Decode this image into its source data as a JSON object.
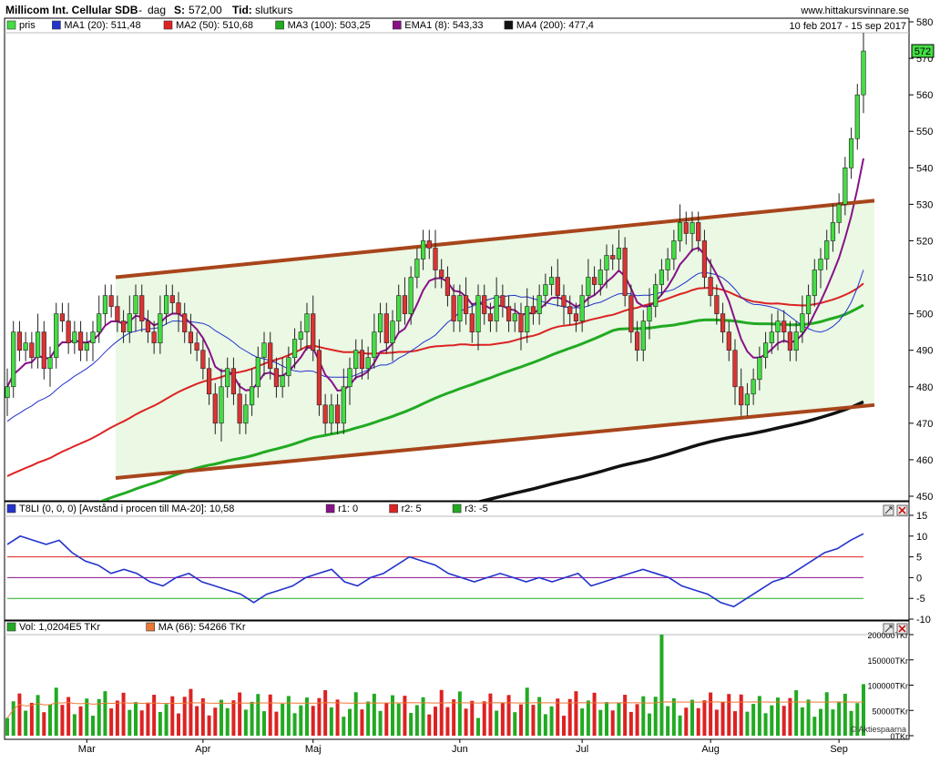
{
  "header": {
    "title": "Millicom Int. Cellular SDB",
    "separator": " - ",
    "period": "dag",
    "price_label": "S:",
    "price_value": "572,00",
    "time_label": "Tid:",
    "time_value": "slutkurs",
    "website": "www.hittakursvinnare.se",
    "date_range": "10 feb 2017 - 15 sep 2017"
  },
  "price_panel": {
    "legend": [
      {
        "label": "pris",
        "color": "#44dd44"
      },
      {
        "label": "MA1 (20): 511,48",
        "color": "#2233cc"
      },
      {
        "label": "MA2 (50): 510,68",
        "color": "#dd2222"
      },
      {
        "label": "MA3 (100): 503,25",
        "color": "#22aa22"
      },
      {
        "label": "EMA1 (8): 543,33",
        "color": "#881188"
      },
      {
        "label": "MA4 (200): 477,4",
        "color": "#111111"
      }
    ],
    "last_price_tag": "572",
    "y_ticks": [
      "580",
      "570",
      "560",
      "550",
      "540",
      "530",
      "520",
      "510",
      "500",
      "490",
      "480",
      "470",
      "460",
      "450"
    ]
  },
  "indicator_panel": {
    "legend": [
      {
        "label": "T8LI (0, 0, 0) [Avstånd i procen till MA-20]: 10,58",
        "color": "#2233cc"
      },
      {
        "label": "r1: 0",
        "color": "#881188"
      },
      {
        "label": "r2: 5",
        "color": "#dd2222"
      },
      {
        "label": "r3: -5",
        "color": "#22aa22"
      }
    ],
    "y_ticks": [
      "15",
      "10",
      "5",
      "0",
      "-5",
      "-10"
    ]
  },
  "volume_panel": {
    "legend": [
      {
        "label": "Vol: 1,0204E5 TKr",
        "color": "#22aa22"
      },
      {
        "label": "MA (66): 54266 TKr",
        "color": "#ee7733"
      }
    ],
    "y_ticks": [
      "200000TKr",
      "150000TKr",
      "100000TKr",
      "50000TKr",
      "0TKr"
    ],
    "watermark": "© Aktiespaarna"
  },
  "x_axis": {
    "months": [
      "Mar",
      "Apr",
      "Maj",
      "Jun",
      "Jul",
      "Aug",
      "Sep"
    ]
  },
  "chart_data": {
    "type": "candlestick",
    "date_range": [
      "10 feb 2017",
      "15 sep 2017"
    ],
    "price_ylim": [
      450,
      580
    ],
    "last_close": 572,
    "close_series_approx": [
      {
        "month": "Feb",
        "values": [
          480,
          495,
          490,
          492,
          488,
          495,
          485,
          488,
          500,
          498,
          492,
          495,
          490
        ]
      },
      {
        "month": "Mar",
        "values": [
          492,
          495,
          500,
          505,
          502,
          498,
          495,
          500,
          505,
          498,
          495,
          492,
          500,
          505,
          503,
          500,
          495,
          492,
          490
        ]
      },
      {
        "month": "Apr",
        "values": [
          485,
          478,
          470,
          480,
          485,
          478,
          470,
          475,
          480,
          488,
          492,
          485,
          480,
          483,
          488,
          493,
          495,
          500
        ]
      },
      {
        "month": "Maj",
        "values": [
          490,
          475,
          470,
          475,
          470,
          480,
          485,
          490,
          485,
          488,
          495,
          500,
          492,
          498,
          505,
          500,
          510,
          515,
          520,
          518,
          512,
          510,
          505,
          498
        ]
      },
      {
        "month": "Jun",
        "values": [
          505,
          500,
          495,
          505,
          500,
          498,
          505,
          502,
          498,
          500,
          495,
          502,
          500,
          505,
          508,
          510,
          505,
          502,
          500,
          498
        ]
      },
      {
        "month": "Jul",
        "values": [
          505,
          510,
          508,
          512,
          516,
          515,
          518,
          505,
          495,
          490,
          498,
          502,
          508,
          512,
          515,
          520,
          525,
          522,
          525,
          520,
          510
        ]
      },
      {
        "month": "Aug",
        "values": [
          505,
          500,
          495,
          490,
          480,
          475,
          478,
          482,
          488,
          492,
          495,
          498,
          495,
          490,
          495,
          500,
          505,
          512,
          515,
          520,
          525
        ]
      },
      {
        "month": "Sep",
        "values": [
          530,
          540,
          548,
          560,
          572
        ]
      }
    ],
    "indicators_last": {
      "MA1_20": 511.48,
      "MA2_50": 510.68,
      "MA3_100": 503.25,
      "EMA1_8": 543.33,
      "MA4_200": 477.4
    },
    "trend_channel": {
      "upper": {
        "from": 510,
        "to": 531
      },
      "lower": {
        "from": 455,
        "to": 475
      }
    },
    "t8li": {
      "ylim": [
        -10,
        15
      ],
      "last": 10.58,
      "reference_lines": {
        "r1": 0,
        "r2": 5,
        "r3": -5
      },
      "values_approx": [
        8,
        10,
        9,
        8,
        9,
        6,
        4,
        3,
        1,
        2,
        1,
        -1,
        -2,
        0,
        1,
        -1,
        -2,
        -3,
        -4,
        -6,
        -4,
        -3,
        -2,
        0,
        1,
        2,
        -1,
        -2,
        0,
        1,
        3,
        5,
        4,
        3,
        1,
        0,
        -1,
        0,
        1,
        0,
        -1,
        0,
        -1,
        0,
        1,
        -2,
        -1,
        0,
        1,
        2,
        1,
        0,
        -2,
        -3,
        -4,
        -6,
        -7,
        -5,
        -3,
        -1,
        0,
        2,
        4,
        6,
        7,
        9,
        10.58
      ]
    },
    "volume": {
      "ylim": [
        0,
        200000
      ],
      "unit": "TKr",
      "last": 102040,
      "ma66": 54266,
      "max_spike": 200000
    }
  }
}
